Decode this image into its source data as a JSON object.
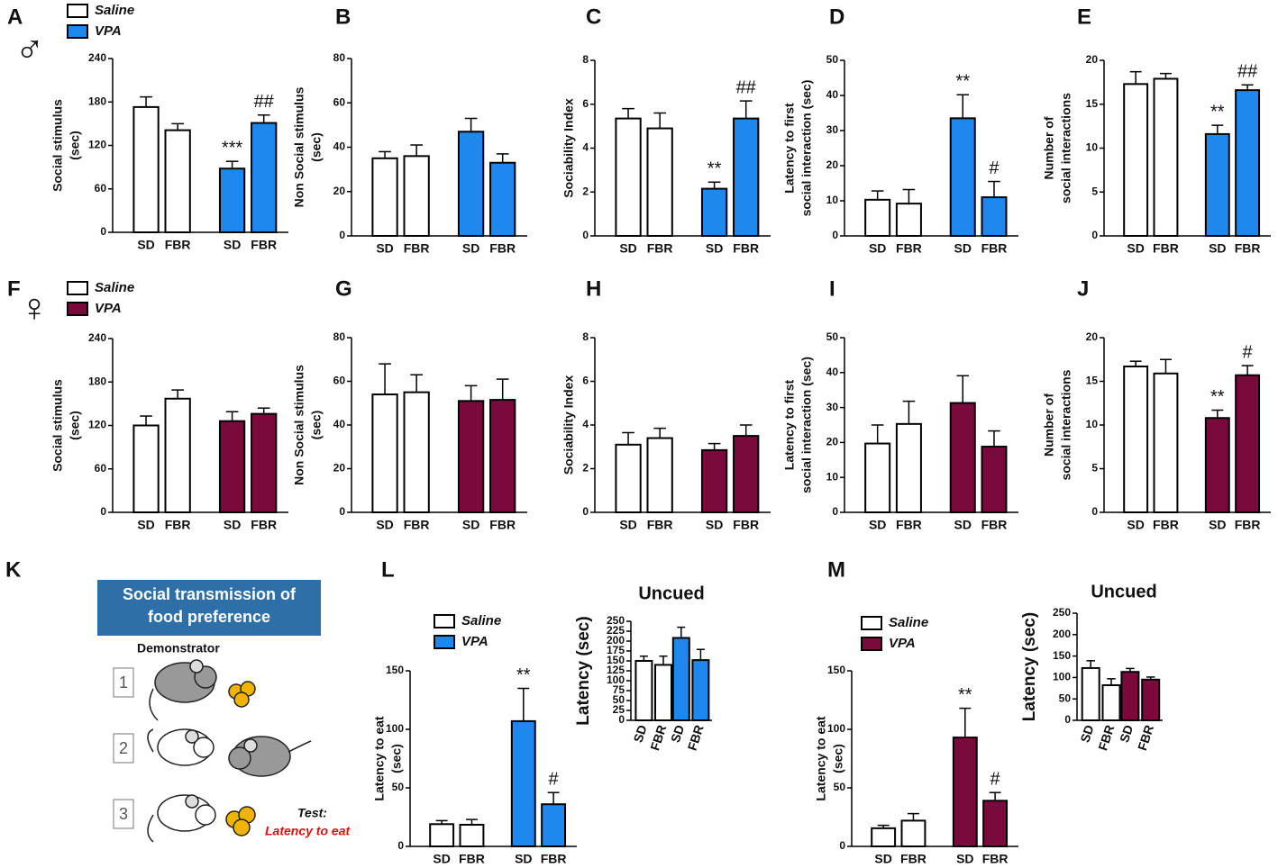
{
  "chart_data": [
    {
      "type": "bar",
      "panel": "A",
      "symbol": "♂",
      "ylabel": [
        "Social stimulus",
        "(sec)"
      ],
      "categories": [
        "SD",
        "FBR",
        "SD",
        "FBR"
      ],
      "series": [
        {
          "name": "Saline",
          "color": "#ffffff",
          "values": [
            173,
            141,
            null,
            null
          ],
          "errors": [
            14,
            9,
            null,
            null
          ]
        },
        {
          "name": "VPA",
          "color": "#1e88ee",
          "values": [
            null,
            null,
            88,
            151
          ],
          "errors": [
            null,
            null,
            10,
            11
          ]
        }
      ],
      "annotations": [
        null,
        null,
        "***",
        "##"
      ],
      "ylim": [
        0,
        240
      ],
      "yticks": [
        0,
        60,
        120,
        180,
        240
      ]
    },
    {
      "type": "bar",
      "panel": "B",
      "ylabel": [
        "Non Social stimulus",
        "(sec)"
      ],
      "categories": [
        "SD",
        "FBR",
        "SD",
        "FBR"
      ],
      "series": [
        {
          "color": "#ffffff",
          "values": [
            35,
            36,
            null,
            null
          ],
          "errors": [
            3,
            5,
            null,
            null
          ]
        },
        {
          "color": "#1e88ee",
          "values": [
            null,
            null,
            47,
            33
          ],
          "errors": [
            null,
            null,
            6,
            4
          ]
        }
      ],
      "ylim": [
        0,
        80
      ],
      "yticks": [
        0,
        20,
        40,
        60,
        80
      ]
    },
    {
      "type": "bar",
      "panel": "C",
      "ylabel": [
        "Sociability Index"
      ],
      "categories": [
        "SD",
        "FBR",
        "SD",
        "FBR"
      ],
      "series": [
        {
          "color": "#ffffff",
          "values": [
            5.35,
            4.9,
            null,
            null
          ],
          "errors": [
            0.45,
            0.7,
            null,
            null
          ]
        },
        {
          "color": "#1e88ee",
          "values": [
            null,
            null,
            2.15,
            5.35
          ],
          "errors": [
            null,
            null,
            0.3,
            0.8
          ]
        }
      ],
      "annotations": [
        null,
        null,
        "**",
        "##"
      ],
      "ylim": [
        0,
        8
      ],
      "yticks": [
        0,
        2,
        4,
        6,
        8
      ]
    },
    {
      "type": "bar",
      "panel": "D",
      "ylabel": [
        "Latency to first",
        "social interaction (sec)"
      ],
      "categories": [
        "SD",
        "FBR",
        "SD",
        "FBR"
      ],
      "series": [
        {
          "color": "#ffffff",
          "values": [
            10.3,
            9.2,
            null,
            null
          ],
          "errors": [
            2.5,
            4,
            null,
            null
          ]
        },
        {
          "color": "#1e88ee",
          "values": [
            null,
            null,
            33.5,
            11
          ],
          "errors": [
            null,
            null,
            6.7,
            4.5
          ]
        }
      ],
      "annotations": [
        null,
        null,
        "**",
        "#"
      ],
      "ylim": [
        0,
        50
      ],
      "yticks": [
        0,
        10,
        20,
        30,
        40,
        50
      ]
    },
    {
      "type": "bar",
      "panel": "E",
      "ylabel": [
        "Number of",
        "social interactions"
      ],
      "categories": [
        "SD",
        "FBR",
        "SD",
        "FBR"
      ],
      "series": [
        {
          "color": "#ffffff",
          "values": [
            17.3,
            17.9,
            null,
            null
          ],
          "errors": [
            1.4,
            0.6,
            null,
            null
          ]
        },
        {
          "color": "#1e88ee",
          "values": [
            null,
            null,
            11.6,
            16.6
          ],
          "errors": [
            null,
            null,
            1,
            0.6
          ]
        }
      ],
      "annotations": [
        null,
        null,
        "**",
        "##"
      ],
      "ylim": [
        0,
        20
      ],
      "yticks": [
        0,
        5,
        10,
        15,
        20
      ]
    },
    {
      "type": "bar",
      "panel": "F",
      "symbol": "♀",
      "ylabel": [
        "Social stimulus",
        "(sec)"
      ],
      "categories": [
        "SD",
        "FBR",
        "SD",
        "FBR"
      ],
      "series": [
        {
          "name": "Saline",
          "color": "#ffffff",
          "values": [
            120,
            157,
            null,
            null
          ],
          "errors": [
            13,
            12,
            null,
            null
          ]
        },
        {
          "name": "VPA",
          "color": "#7a0a3c",
          "values": [
            null,
            null,
            126,
            136
          ],
          "errors": [
            null,
            null,
            13,
            8
          ]
        }
      ],
      "ylim": [
        0,
        240
      ],
      "yticks": [
        0,
        60,
        120,
        180,
        240
      ]
    },
    {
      "type": "bar",
      "panel": "G",
      "ylabel": [
        "Non Social stimulus",
        "(sec)"
      ],
      "categories": [
        "SD",
        "FBR",
        "SD",
        "FBR"
      ],
      "series": [
        {
          "color": "#ffffff",
          "values": [
            54,
            55,
            null,
            null
          ],
          "errors": [
            14,
            8,
            null,
            null
          ]
        },
        {
          "color": "#7a0a3c",
          "values": [
            null,
            null,
            51,
            51.5
          ],
          "errors": [
            null,
            null,
            7,
            9.5
          ]
        }
      ],
      "ylim": [
        0,
        80
      ],
      "yticks": [
        0,
        20,
        40,
        60,
        80
      ]
    },
    {
      "type": "bar",
      "panel": "H",
      "ylabel": [
        "Sociability Index"
      ],
      "categories": [
        "SD",
        "FBR",
        "SD",
        "FBR"
      ],
      "series": [
        {
          "color": "#ffffff",
          "values": [
            3.1,
            3.4,
            null,
            null
          ],
          "errors": [
            0.55,
            0.45,
            null,
            null
          ]
        },
        {
          "color": "#7a0a3c",
          "values": [
            null,
            null,
            2.85,
            3.5
          ],
          "errors": [
            null,
            null,
            0.3,
            0.5
          ]
        }
      ],
      "ylim": [
        0,
        8
      ],
      "yticks": [
        0,
        2,
        4,
        6,
        8
      ]
    },
    {
      "type": "bar",
      "panel": "I",
      "ylabel": [
        "Latency to first",
        "social interaction (sec)"
      ],
      "categories": [
        "SD",
        "FBR",
        "SD",
        "FBR"
      ],
      "series": [
        {
          "color": "#ffffff",
          "values": [
            19.7,
            25.3,
            null,
            null
          ],
          "errors": [
            5.3,
            6.5,
            null,
            null
          ]
        },
        {
          "color": "#7a0a3c",
          "values": [
            null,
            null,
            31.3,
            18.8
          ],
          "errors": [
            null,
            null,
            7.8,
            4.5
          ]
        }
      ],
      "ylim": [
        0,
        50
      ],
      "yticks": [
        0,
        10,
        20,
        30,
        40,
        50
      ]
    },
    {
      "type": "bar",
      "panel": "J",
      "ylabel": [
        "Number of",
        "social interactions"
      ],
      "categories": [
        "SD",
        "FBR",
        "SD",
        "FBR"
      ],
      "series": [
        {
          "color": "#ffffff",
          "values": [
            16.7,
            15.9,
            null,
            null
          ],
          "errors": [
            0.6,
            1.6,
            null,
            null
          ]
        },
        {
          "color": "#7a0a3c",
          "values": [
            null,
            null,
            10.8,
            15.7
          ],
          "errors": [
            null,
            null,
            0.9,
            1.1
          ]
        }
      ],
      "annotations": [
        null,
        null,
        "**",
        "#"
      ],
      "ylim": [
        0,
        20
      ],
      "yticks": [
        0,
        5,
        10,
        15,
        20
      ]
    },
    {
      "type": "bar",
      "panel": "L",
      "ylabel": [
        "Latency to eat",
        "(sec)"
      ],
      "categories": [
        "SD",
        "FBR",
        "SD",
        "FBR"
      ],
      "series": [
        {
          "name": "Saline",
          "color": "#ffffff",
          "values": [
            19,
            18.5,
            null,
            null
          ],
          "errors": [
            3,
            4.5,
            null,
            null
          ]
        },
        {
          "name": "VPA",
          "color": "#1e88ee",
          "values": [
            null,
            null,
            107,
            36
          ],
          "errors": [
            null,
            null,
            28,
            10
          ]
        }
      ],
      "annotations": [
        null,
        null,
        "**",
        "#"
      ],
      "ylim": [
        0,
        150
      ],
      "yticks": [
        0,
        50,
        100,
        150
      ]
    },
    {
      "type": "bar",
      "title": "Uncued",
      "ylabel": [
        "Latency (sec)"
      ],
      "categories": [
        "SD",
        "FBR",
        "SD",
        "FBR"
      ],
      "series": [
        {
          "color": "#ffffff",
          "values": [
            150,
            140,
            null,
            null
          ],
          "errors": [
            12,
            22,
            null,
            null
          ]
        },
        {
          "color": "#1e88ee",
          "values": [
            null,
            null,
            208,
            152
          ],
          "errors": [
            null,
            null,
            27,
            27
          ]
        }
      ],
      "ylim": [
        0,
        250
      ],
      "yticks": [
        0,
        25,
        50,
        75,
        100,
        125,
        150,
        175,
        200,
        225,
        250
      ]
    },
    {
      "type": "bar",
      "panel": "M",
      "ylabel": [
        "Latency to eat",
        "(sec)"
      ],
      "categories": [
        "SD",
        "FBR",
        "SD",
        "FBR"
      ],
      "series": [
        {
          "name": "Saline",
          "color": "#ffffff",
          "values": [
            15.5,
            22,
            null,
            null
          ],
          "errors": [
            2.5,
            6,
            null,
            null
          ]
        },
        {
          "name": "VPA",
          "color": "#7a0a3c",
          "values": [
            null,
            null,
            93,
            39
          ],
          "errors": [
            null,
            null,
            25,
            7
          ]
        }
      ],
      "annotations": [
        null,
        null,
        "**",
        "#"
      ],
      "ylim": [
        0,
        150
      ],
      "yticks": [
        0,
        50,
        100,
        150
      ]
    },
    {
      "type": "bar",
      "title": "Uncued",
      "ylabel": [
        "Latency (sec)"
      ],
      "categories": [
        "SD",
        "FBR",
        "SD",
        "FBR"
      ],
      "series": [
        {
          "color": "#ffffff",
          "values": [
            122,
            82,
            null,
            null
          ],
          "errors": [
            17,
            15,
            null,
            null
          ]
        },
        {
          "color": "#7a0a3c",
          "values": [
            null,
            null,
            113,
            95
          ],
          "errors": [
            null,
            null,
            8,
            6
          ]
        }
      ],
      "ylim": [
        0,
        250
      ],
      "yticks": [
        0,
        50,
        100,
        150,
        200,
        250
      ]
    }
  ],
  "panel_k": {
    "label": "K",
    "title": [
      "Social transmission of",
      "food preference"
    ],
    "demonstrator": "Demonstrator",
    "steps": [
      "1",
      "2",
      "3"
    ],
    "test": "Test:",
    "test_measure": "Latency to eat"
  }
}
